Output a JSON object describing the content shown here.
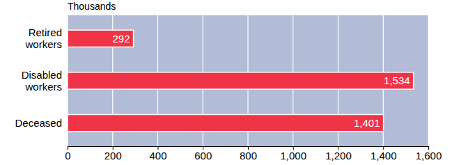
{
  "chart_data": {
    "type": "bar",
    "orientation": "horizontal",
    "xlabel": "Thousands",
    "categories": [
      "Retired workers",
      "Disabled workers",
      "Deceased"
    ],
    "values": [
      292,
      1534,
      1401
    ],
    "value_labels": [
      "292",
      "1,534",
      "1,401"
    ],
    "color": "#ee3446",
    "xlim": [
      0,
      1600
    ],
    "xticks": [
      0,
      200,
      400,
      600,
      800,
      {
        "value": 1000,
        "label": "1,000"
      },
      {
        "value": 1200,
        "label": "1,200"
      },
      {
        "value": 1400,
        "label": "1,400"
      },
      {
        "value": 1600,
        "label": "1,600"
      }
    ],
    "grid": true,
    "data_labels": true
  }
}
